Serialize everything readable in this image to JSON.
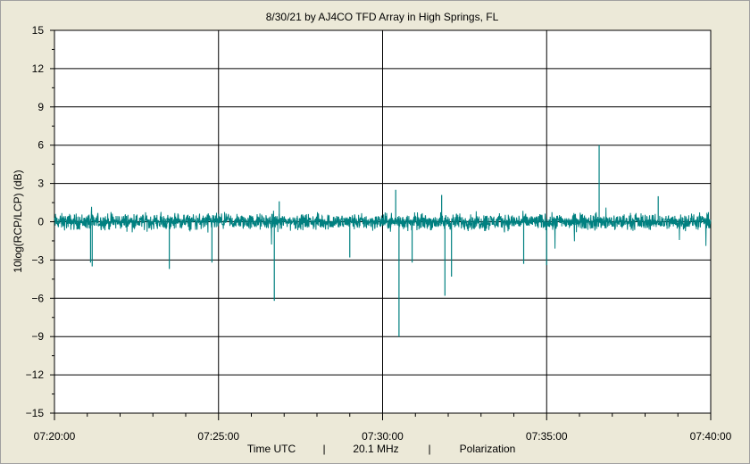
{
  "chart_data": {
    "type": "line",
    "title": "8/30/21  by  AJ4CO TFD Array  in  High Springs, FL",
    "ylabel": "10log(RCP/LCP) (dB)",
    "xlabel_parts": [
      "Time UTC",
      "|",
      "20.1 MHz",
      "|",
      "Polarization"
    ],
    "ylim": [
      -15,
      15
    ],
    "yticks": [
      15,
      12,
      9,
      6,
      3,
      0,
      -3,
      -6,
      -9,
      -12,
      -15
    ],
    "xlim_minutes": [
      0,
      20
    ],
    "xticks": [
      "07:20:00",
      "07:25:00",
      "07:30:00",
      "07:35:00",
      "07:40:00"
    ],
    "grid": true,
    "line_color": "#008080",
    "series": [
      {
        "values_note": "",
        "baseline": 0,
        "noise_amplitude": 0.7,
        "spikes": [
          {
            "x": 1.1,
            "y": -3.2
          },
          {
            "x": 1.15,
            "y": -3.5
          },
          {
            "x": 3.5,
            "y": -3.7
          },
          {
            "x": 4.8,
            "y": -3.2
          },
          {
            "x": 6.7,
            "y": -6.2
          },
          {
            "x": 6.85,
            "y": 1.6
          },
          {
            "x": 9.0,
            "y": -2.8
          },
          {
            "x": 10.4,
            "y": 2.5
          },
          {
            "x": 10.5,
            "y": -9.0
          },
          {
            "x": 10.9,
            "y": -3.2
          },
          {
            "x": 11.8,
            "y": 2.1
          },
          {
            "x": 11.9,
            "y": -5.8
          },
          {
            "x": 12.1,
            "y": -4.3
          },
          {
            "x": 14.3,
            "y": -3.3
          },
          {
            "x": 15.0,
            "y": -3.4
          },
          {
            "x": 16.6,
            "y": 6.0
          },
          {
            "x": 18.4,
            "y": 2.0
          }
        ]
      }
    ]
  }
}
